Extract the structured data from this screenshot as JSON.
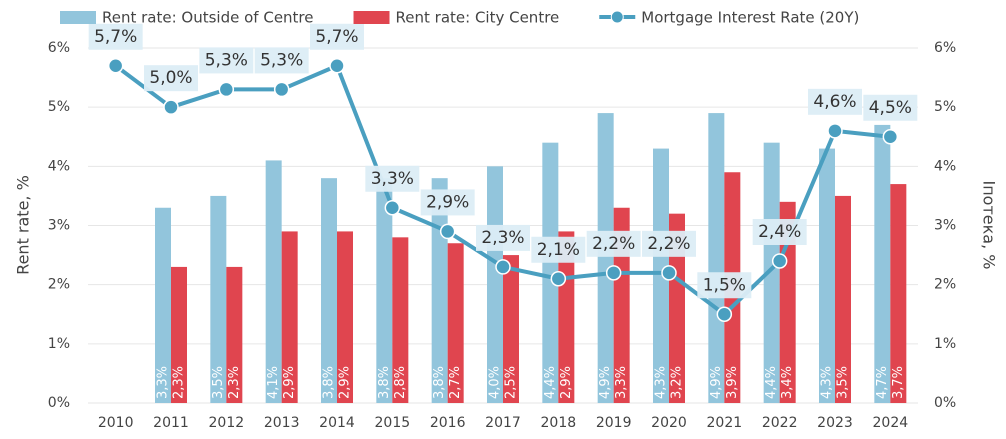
{
  "chart_data": {
    "type": "bar",
    "categories": [
      "2010",
      "2011",
      "2012",
      "2013",
      "2014",
      "2015",
      "2016",
      "2017",
      "2018",
      "2019",
      "2020",
      "2021",
      "2022",
      "2023",
      "2024"
    ],
    "series": [
      {
        "name": "Rent rate: Outside of Centre",
        "type": "bar",
        "color": "#92c5dc",
        "values": [
          null,
          3.3,
          3.5,
          4.1,
          3.8,
          3.8,
          3.8,
          4.0,
          4.4,
          4.9,
          4.3,
          4.9,
          4.4,
          4.3,
          4.7
        ],
        "value_labels": [
          null,
          "3,3%",
          "3,5%",
          "4,1%",
          "3,8%",
          "3,8%",
          "3,8%",
          "4,0%",
          "4,4%",
          "4,9%",
          "4,3%",
          "4,9%",
          "4,4%",
          "4,3%",
          "4,7%"
        ]
      },
      {
        "name": "Rent rate: City Centre",
        "type": "bar",
        "color": "#e0454f",
        "values": [
          null,
          2.3,
          2.3,
          2.9,
          2.9,
          2.8,
          2.7,
          2.5,
          2.9,
          3.3,
          3.2,
          3.9,
          3.4,
          3.5,
          3.7
        ],
        "value_labels": [
          null,
          "2,3%",
          "2,3%",
          "2,9%",
          "2,9%",
          "2,8%",
          "2,7%",
          "2,5%",
          "2,9%",
          "3,3%",
          "3,2%",
          "3,9%",
          "3,4%",
          "3,5%",
          "3,7%"
        ]
      },
      {
        "name": "Mortgage Interest Rate (20Y)",
        "type": "line",
        "axis": "y2",
        "color": "#4a9fc0",
        "values": [
          5.7,
          5.0,
          5.3,
          5.3,
          5.7,
          3.3,
          2.9,
          2.3,
          2.1,
          2.2,
          2.2,
          1.5,
          2.4,
          4.6,
          4.5
        ],
        "value_labels": [
          "5,7%",
          "5,0%",
          "5,3%",
          "5,3%",
          "5,7%",
          "3,3%",
          "2,9%",
          "2,3%",
          "2,1%",
          "2,2%",
          "2,2%",
          "1,5%",
          "2,4%",
          "4,6%",
          "4,5%"
        ]
      }
    ],
    "y_label": "Rent rate, %",
    "y2_label": "Іпотека, %",
    "ylim": [
      0,
      6
    ],
    "yticks": [
      {
        "value": 0,
        "label": "0%"
      },
      {
        "value": 1,
        "label": "1%"
      },
      {
        "value": 2,
        "label": "2%"
      },
      {
        "value": 3,
        "label": "3%"
      },
      {
        "value": 4,
        "label": "4%"
      },
      {
        "value": 5,
        "label": "5%"
      },
      {
        "value": 6,
        "label": "6%"
      }
    ],
    "y2lim": [
      0,
      6
    ],
    "y2ticks": [
      {
        "value": 0,
        "label": "0%"
      },
      {
        "value": 1,
        "label": "1%"
      },
      {
        "value": 2,
        "label": "2%"
      },
      {
        "value": 3,
        "label": "3%"
      },
      {
        "value": 4,
        "label": "4%"
      },
      {
        "value": 5,
        "label": "5%"
      },
      {
        "value": 6,
        "label": "6%"
      }
    ],
    "grid": true,
    "legend": "top"
  }
}
